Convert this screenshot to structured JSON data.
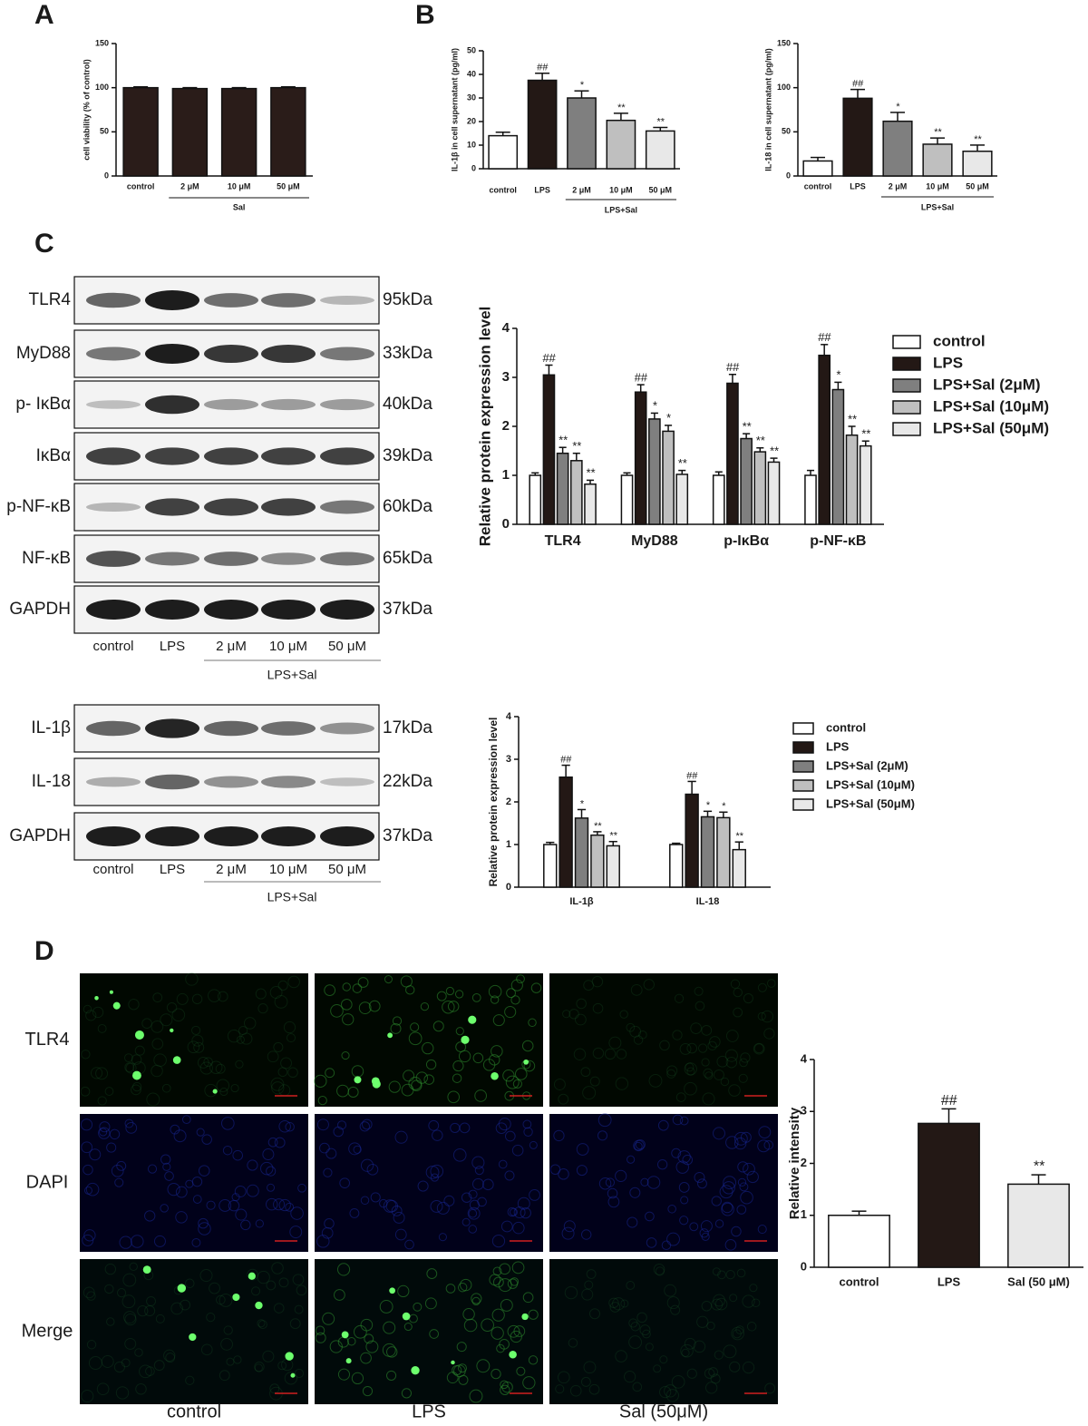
{
  "panel_labels": [
    "A",
    "B",
    "C",
    "D"
  ],
  "chart_data": [
    {
      "type": "bar",
      "ylabel": "cell viability (% of control)",
      "categories": [
        "control",
        "2 μM",
        "10 μM",
        "50 μM"
      ],
      "values": [
        100,
        99,
        99,
        100
      ],
      "errors": [
        1,
        1,
        1,
        1
      ],
      "colors": [
        "#2a1c19",
        "#2a1c19",
        "#2a1c19",
        "#2a1c19"
      ],
      "ylim": [
        0,
        150
      ],
      "yticks": [
        0,
        50,
        100,
        150
      ],
      "group_label": "Sal"
    },
    {
      "type": "bar",
      "ylabel": "IL-1β  in cell supernatant (pg/ml)",
      "categories": [
        "control",
        "LPS",
        "2 μM",
        "10 μM",
        "50 μM"
      ],
      "values": [
        14,
        37.5,
        30,
        20.5,
        16
      ],
      "errors": [
        1.5,
        3,
        3,
        3,
        1.5
      ],
      "annotations": [
        null,
        "##",
        "*",
        "**",
        "**"
      ],
      "colors": [
        "#ffffff",
        "#231815",
        "#7f7f7f",
        "#bfbfbf",
        "#e8e8e8"
      ],
      "ylim": [
        0,
        50
      ],
      "yticks": [
        0,
        10,
        20,
        30,
        40,
        50
      ],
      "group_label": "LPS+Sal"
    },
    {
      "type": "bar",
      "ylabel": "IL-18 in cell supernatant (pg/ml)",
      "categories": [
        "control",
        "LPS",
        "2 μM",
        "10 μM",
        "50 μM"
      ],
      "values": [
        17,
        88,
        62,
        36,
        28
      ],
      "errors": [
        4,
        10,
        10,
        7,
        7
      ],
      "annotations": [
        null,
        "##",
        "*",
        "**",
        "**"
      ],
      "colors": [
        "#ffffff",
        "#231815",
        "#7f7f7f",
        "#bfbfbf",
        "#e8e8e8"
      ],
      "ylim": [
        0,
        150
      ],
      "yticks": [
        0,
        50,
        100,
        150
      ],
      "group_label": "LPS+Sal"
    },
    {
      "type": "bar",
      "ylabel": "Relative protein expression level",
      "categories": [
        "TLR4",
        "MyD88",
        "p-IκBα",
        "p-NF-κB"
      ],
      "series": [
        {
          "name": "control",
          "color": "#ffffff",
          "values": [
            1,
            1,
            1,
            1
          ],
          "errors": [
            0.05,
            0.05,
            0.07,
            0.1
          ],
          "annotations": [
            null,
            null,
            null,
            null
          ]
        },
        {
          "name": "LPS",
          "color": "#231815",
          "values": [
            3.05,
            2.7,
            2.88,
            3.45
          ],
          "errors": [
            0.2,
            0.15,
            0.18,
            0.22
          ],
          "annotations": [
            "##",
            "##",
            "##",
            "##"
          ]
        },
        {
          "name": "LPS+Sal (2μM)",
          "color": "#7f7f7f",
          "values": [
            1.45,
            2.15,
            1.75,
            2.75
          ],
          "errors": [
            0.12,
            0.12,
            0.1,
            0.15
          ],
          "annotations": [
            "**",
            "*",
            "**",
            "*"
          ]
        },
        {
          "name": "LPS+Sal (10μM)",
          "color": "#bfbfbf",
          "values": [
            1.3,
            1.9,
            1.48,
            1.82
          ],
          "errors": [
            0.15,
            0.12,
            0.08,
            0.18
          ],
          "annotations": [
            "**",
            "*",
            "**",
            "**"
          ]
        },
        {
          "name": "LPS+Sal (50μM)",
          "color": "#e8e8e8",
          "values": [
            0.82,
            1.02,
            1.27,
            1.6
          ],
          "errors": [
            0.08,
            0.08,
            0.08,
            0.1
          ],
          "annotations": [
            "**",
            "**",
            "**",
            "**"
          ]
        }
      ],
      "ylim": [
        0,
        4
      ],
      "yticks": [
        0,
        1,
        2,
        3,
        4
      ],
      "legend": "right"
    },
    {
      "type": "bar",
      "ylabel": "Relative protein expression level",
      "categories": [
        "IL-1β",
        "IL-18"
      ],
      "series": [
        {
          "name": "control",
          "color": "#ffffff",
          "values": [
            1,
            1
          ],
          "errors": [
            0.05,
            0.03
          ],
          "annotations": [
            null,
            null
          ]
        },
        {
          "name": "LPS",
          "color": "#231815",
          "values": [
            2.58,
            2.18
          ],
          "errors": [
            0.28,
            0.3
          ],
          "annotations": [
            "##",
            "##"
          ]
        },
        {
          "name": "LPS+Sal (2μM)",
          "color": "#7f7f7f",
          "values": [
            1.62,
            1.65
          ],
          "errors": [
            0.2,
            0.13
          ],
          "annotations": [
            "*",
            "*"
          ]
        },
        {
          "name": "LPS+Sal (10μM)",
          "color": "#bfbfbf",
          "values": [
            1.22,
            1.63
          ],
          "errors": [
            0.08,
            0.13
          ],
          "annotations": [
            "**",
            "*"
          ]
        },
        {
          "name": "LPS+Sal (50μM)",
          "color": "#e8e8e8",
          "values": [
            0.97,
            0.88
          ],
          "errors": [
            0.1,
            0.18
          ],
          "annotations": [
            "**",
            "**"
          ]
        }
      ],
      "ylim": [
        0,
        4
      ],
      "yticks": [
        0,
        1,
        2,
        3,
        4
      ],
      "legend": "right"
    },
    {
      "type": "bar",
      "ylabel": "Relative intensity",
      "categories": [
        "control",
        "LPS",
        "Sal (50 μM)"
      ],
      "values": [
        1,
        2.77,
        1.6
      ],
      "errors": [
        0.08,
        0.28,
        0.18
      ],
      "annotations": [
        null,
        "##",
        "**"
      ],
      "colors": [
        "#ffffff",
        "#231815",
        "#e8e8e8"
      ],
      "ylim": [
        0,
        4
      ],
      "yticks": [
        0,
        1,
        2,
        3,
        4
      ]
    }
  ],
  "blots": [
    {
      "proteins": [
        "TLR4",
        "MyD88",
        "p- IκBα",
        "IκBα",
        "p-NF-κB",
        "NF-κB",
        "GAPDH"
      ],
      "weights": [
        "95kDa",
        "33kDa",
        "40kDa",
        "39kDa",
        "60kDa",
        "65kDa",
        "37kDa"
      ],
      "lanes": [
        "control",
        "LPS",
        "2 μM",
        "10 μM",
        "50 μM"
      ],
      "group": "LPS+Sal"
    },
    {
      "proteins": [
        "IL-1β",
        "IL-18",
        "GAPDH"
      ],
      "weights": [
        "17kDa",
        "22kDa",
        "37kDa"
      ],
      "lanes": [
        "control",
        "LPS",
        "2 μM",
        "10 μM",
        "50 μM"
      ],
      "group": "LPS+Sal"
    }
  ],
  "micrographs": {
    "rows": [
      "TLR4",
      "DAPI",
      "Merge"
    ],
    "columns": [
      "control",
      "LPS",
      "Sal (50μM)"
    ]
  }
}
